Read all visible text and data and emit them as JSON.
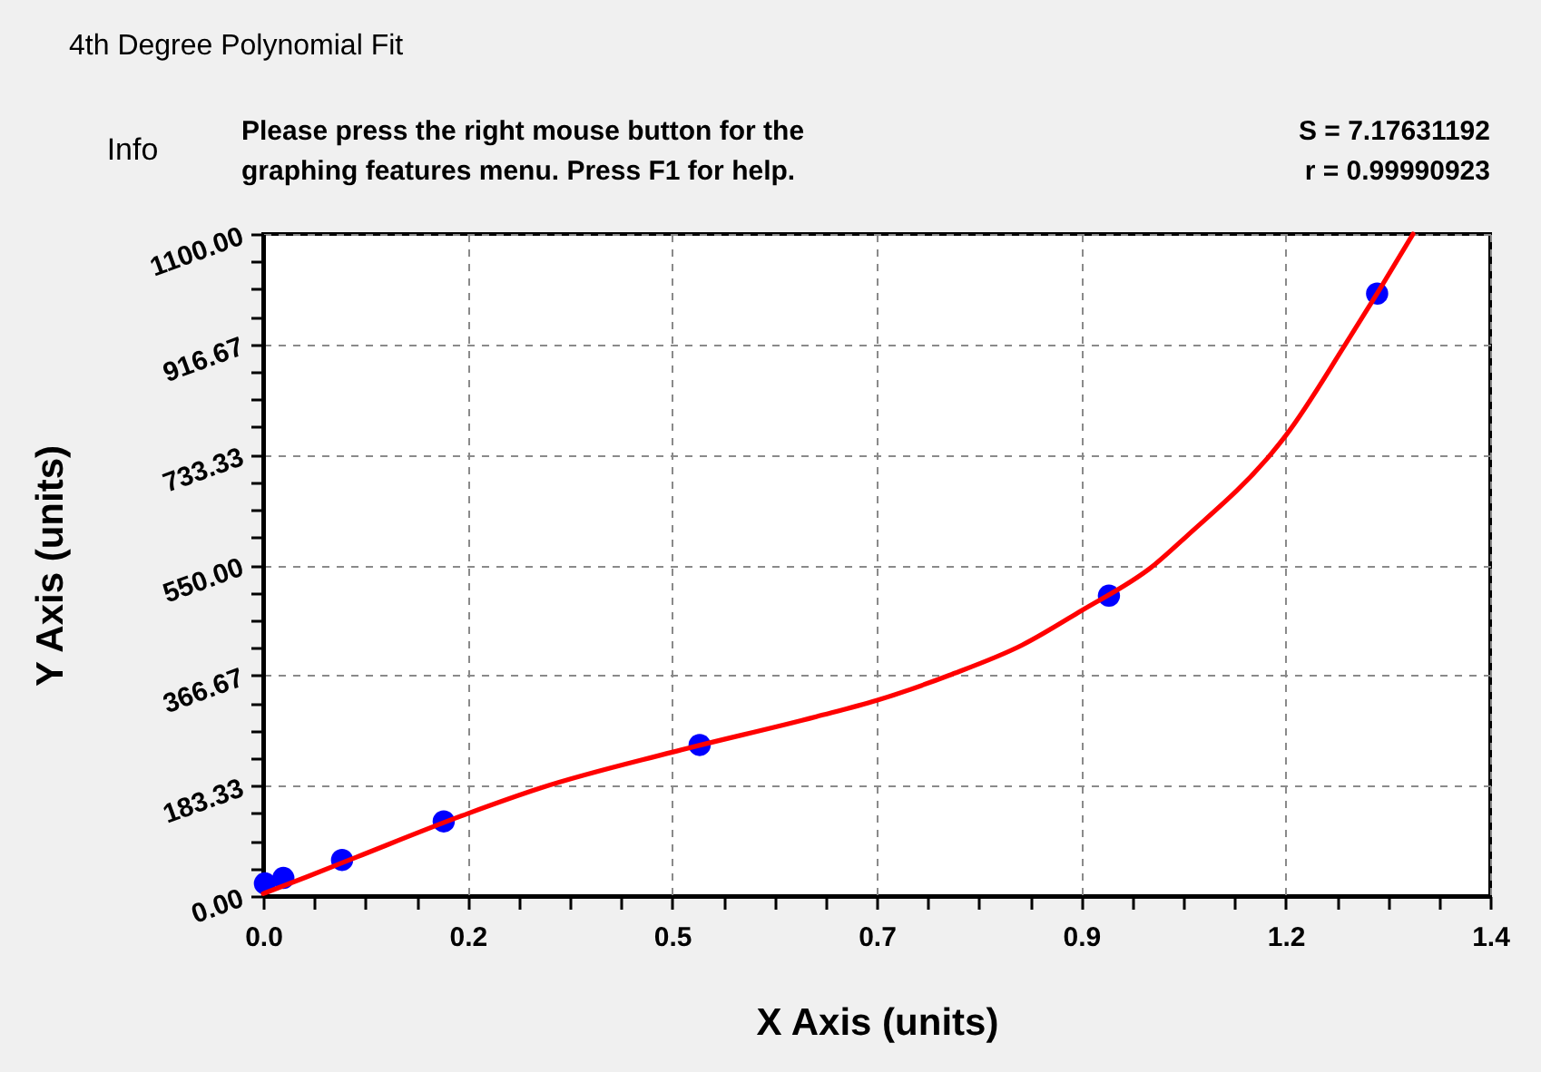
{
  "chart_data": {
    "type": "scatter",
    "title": "4th Degree Polynomial Fit",
    "xlabel": "X Axis (units)",
    "ylabel": "Y Axis (units)",
    "annotations": [
      "Info",
      "Please press the right mouse button for the\ngraphing features menu.  Press F1 for help.",
      "S = 7.17631192",
      "r = 0.99990923"
    ],
    "marker": "circle",
    "grid": true,
    "series": [
      {
        "color": "#0000ff",
        "x": [
          0.002,
          0.023,
          0.09,
          0.206,
          0.498,
          0.965,
          1.271
        ],
        "values": [
          21,
          30,
          60,
          124,
          251,
          499,
          1001
        ]
      },
      {
        "type": "line",
        "color": "#ff0000",
        "marker": "none",
        "line_style": "solid",
        "x": [
          0,
          0.05,
          0.107,
          0.2333,
          0.3176,
          0.4667,
          0.631,
          0.7,
          0.783,
          0.866,
          0.9333,
          1.0166,
          1.053,
          1.149,
          1.1667,
          1.235,
          1.271,
          1.312
        ],
        "values": [
          4,
          32,
          65,
          137,
          180,
          239,
          298,
          325,
          367,
          417,
          474,
          550,
          597,
          733,
          765,
          917,
          1001,
          1100
        ]
      }
    ],
    "xlim": [
      0,
      1.4
    ],
    "ylim": [
      0,
      1100
    ],
    "xticks": [
      {
        "value": 0,
        "label": "0.0"
      },
      {
        "value": 0.05833,
        "label": null
      },
      {
        "value": 0.11667,
        "label": null
      },
      {
        "value": 0.175,
        "label": null
      },
      {
        "value": 0.23333,
        "label": "0.2"
      },
      {
        "value": 0.29167,
        "label": null
      },
      {
        "value": 0.35,
        "label": null
      },
      {
        "value": 0.40833,
        "label": null
      },
      {
        "value": 0.46667,
        "label": "0.5"
      },
      {
        "value": 0.525,
        "label": null
      },
      {
        "value": 0.58333,
        "label": null
      },
      {
        "value": 0.64167,
        "label": null
      },
      {
        "value": 0.7,
        "label": "0.7"
      },
      {
        "value": 0.75833,
        "label": null
      },
      {
        "value": 0.81667,
        "label": null
      },
      {
        "value": 0.875,
        "label": null
      },
      {
        "value": 0.93333,
        "label": "0.9"
      },
      {
        "value": 0.99167,
        "label": null
      },
      {
        "value": 1.05,
        "label": null
      },
      {
        "value": 1.10833,
        "label": null
      },
      {
        "value": 1.16667,
        "label": "1.2"
      },
      {
        "value": 1.225,
        "label": null
      },
      {
        "value": 1.28333,
        "label": null
      },
      {
        "value": 1.34167,
        "label": null
      },
      {
        "value": 1.4,
        "label": "1.4"
      }
    ],
    "yticks": [
      {
        "value": 0,
        "label": "0.00"
      },
      {
        "value": 45.83,
        "label": null
      },
      {
        "value": 91.67,
        "label": null
      },
      {
        "value": 137.5,
        "label": null
      },
      {
        "value": 183.33,
        "label": "183.33"
      },
      {
        "value": 229.17,
        "label": null
      },
      {
        "value": 275,
        "label": null
      },
      {
        "value": 320.83,
        "label": null
      },
      {
        "value": 366.67,
        "label": "366.67"
      },
      {
        "value": 412.5,
        "label": null
      },
      {
        "value": 458.33,
        "label": null
      },
      {
        "value": 504.17,
        "label": null
      },
      {
        "value": 550,
        "label": "550.00"
      },
      {
        "value": 595.83,
        "label": null
      },
      {
        "value": 641.67,
        "label": null
      },
      {
        "value": 687.5,
        "label": null
      },
      {
        "value": 733.33,
        "label": "733.33"
      },
      {
        "value": 779.17,
        "label": null
      },
      {
        "value": 825,
        "label": null
      },
      {
        "value": 870.83,
        "label": null
      },
      {
        "value": 916.67,
        "label": "916.67"
      },
      {
        "value": 962.5,
        "label": null
      },
      {
        "value": 1008.33,
        "label": null
      },
      {
        "value": 1054.17,
        "label": null
      },
      {
        "value": 1100,
        "label": "1100.00"
      }
    ]
  }
}
